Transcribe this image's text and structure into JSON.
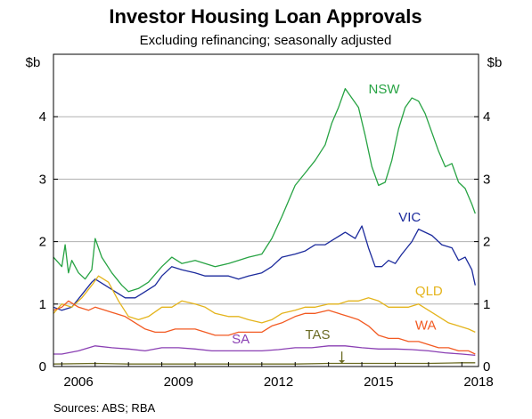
{
  "chart_data": {
    "type": "line",
    "title": "Investor Housing Loan Approvals",
    "subtitle": "Excluding refinancing; seasonally adjusted",
    "ylabel_left": "$b",
    "ylabel_right": "$b",
    "source": "Sources:   ABS; RBA",
    "xlim": [
      2005.75,
      2018.5
    ],
    "ylim": [
      0,
      5
    ],
    "y_ticks": [
      "0",
      "1",
      "2",
      "3",
      "4"
    ],
    "x_ticks": [
      {
        "value": 2006,
        "label": "2006"
      },
      {
        "value": 2009,
        "label": "2009"
      },
      {
        "value": 2012,
        "label": "2012"
      },
      {
        "value": 2015,
        "label": "2015"
      },
      {
        "value": 2018,
        "label": "2018"
      }
    ],
    "grid": true,
    "series": [
      {
        "name": "NSW",
        "color": "#27a343",
        "x": [
          2005.75,
          2006.0,
          2006.1,
          2006.2,
          2006.3,
          2006.5,
          2006.7,
          2006.9,
          2007.0,
          2007.2,
          2007.5,
          2007.8,
          2008.0,
          2008.3,
          2008.6,
          2009.0,
          2009.3,
          2009.6,
          2010.0,
          2010.3,
          2010.6,
          2011.0,
          2011.3,
          2011.6,
          2012.0,
          2012.3,
          2012.6,
          2013.0,
          2013.3,
          2013.6,
          2013.9,
          2014.1,
          2014.3,
          2014.5,
          2014.7,
          2014.9,
          2015.1,
          2015.3,
          2015.5,
          2015.7,
          2015.9,
          2016.1,
          2016.3,
          2016.5,
          2016.7,
          2016.9,
          2017.1,
          2017.3,
          2017.5,
          2017.7,
          2017.9,
          2018.1,
          2018.3,
          2018.4
        ],
        "values": [
          1.75,
          1.6,
          1.95,
          1.5,
          1.7,
          1.5,
          1.4,
          1.55,
          2.05,
          1.75,
          1.5,
          1.3,
          1.2,
          1.25,
          1.35,
          1.6,
          1.75,
          1.65,
          1.7,
          1.65,
          1.6,
          1.65,
          1.7,
          1.75,
          1.8,
          2.05,
          2.4,
          2.9,
          3.1,
          3.3,
          3.55,
          3.9,
          4.15,
          4.45,
          4.3,
          4.15,
          3.7,
          3.2,
          2.9,
          2.95,
          3.3,
          3.8,
          4.15,
          4.3,
          4.25,
          4.05,
          3.75,
          3.45,
          3.2,
          3.25,
          2.95,
          2.85,
          2.6,
          2.45
        ]
      },
      {
        "name": "VIC",
        "color": "#1b2a9c",
        "x": [
          2005.75,
          2006.0,
          2006.3,
          2006.6,
          2006.9,
          2007.0,
          2007.3,
          2007.6,
          2007.9,
          2008.2,
          2008.5,
          2008.8,
          2009.0,
          2009.3,
          2009.6,
          2010.0,
          2010.3,
          2010.6,
          2011.0,
          2011.3,
          2011.6,
          2012.0,
          2012.3,
          2012.6,
          2013.0,
          2013.3,
          2013.6,
          2013.9,
          2014.2,
          2014.5,
          2014.8,
          2015.0,
          2015.2,
          2015.4,
          2015.6,
          2015.8,
          2016.0,
          2016.2,
          2016.5,
          2016.7,
          2016.9,
          2017.1,
          2017.4,
          2017.7,
          2017.9,
          2018.1,
          2018.3,
          2018.4
        ],
        "values": [
          0.95,
          0.9,
          0.95,
          1.15,
          1.35,
          1.4,
          1.3,
          1.2,
          1.1,
          1.1,
          1.2,
          1.3,
          1.45,
          1.6,
          1.55,
          1.5,
          1.45,
          1.45,
          1.45,
          1.4,
          1.45,
          1.5,
          1.6,
          1.75,
          1.8,
          1.85,
          1.95,
          1.95,
          2.05,
          2.15,
          2.05,
          2.25,
          1.9,
          1.6,
          1.6,
          1.7,
          1.65,
          1.8,
          2.0,
          2.2,
          2.15,
          2.1,
          1.95,
          1.9,
          1.7,
          1.75,
          1.55,
          1.3
        ]
      },
      {
        "name": "QLD",
        "color": "#e4b41c",
        "x": [
          2005.75,
          2006.0,
          2006.3,
          2006.6,
          2006.9,
          2007.1,
          2007.4,
          2007.7,
          2008.0,
          2008.3,
          2008.6,
          2009.0,
          2009.3,
          2009.6,
          2010.0,
          2010.3,
          2010.6,
          2011.0,
          2011.3,
          2011.6,
          2012.0,
          2012.3,
          2012.6,
          2013.0,
          2013.3,
          2013.6,
          2014.0,
          2014.3,
          2014.6,
          2014.9,
          2015.2,
          2015.5,
          2015.8,
          2016.1,
          2016.4,
          2016.7,
          2017.0,
          2017.3,
          2017.6,
          2017.9,
          2018.2,
          2018.4
        ],
        "values": [
          0.85,
          1.0,
          0.95,
          1.1,
          1.3,
          1.45,
          1.35,
          1.05,
          0.8,
          0.75,
          0.8,
          0.95,
          0.95,
          1.05,
          1.0,
          0.95,
          0.85,
          0.8,
          0.8,
          0.75,
          0.7,
          0.75,
          0.85,
          0.9,
          0.95,
          0.95,
          1.0,
          1.0,
          1.05,
          1.05,
          1.1,
          1.05,
          0.95,
          0.95,
          0.95,
          1.0,
          0.9,
          0.8,
          0.7,
          0.65,
          0.6,
          0.55
        ]
      },
      {
        "name": "WA",
        "color": "#f25a22",
        "x": [
          2005.75,
          2006.0,
          2006.2,
          2006.5,
          2006.8,
          2007.0,
          2007.3,
          2007.6,
          2007.9,
          2008.2,
          2008.5,
          2008.8,
          2009.1,
          2009.4,
          2009.7,
          2010.0,
          2010.3,
          2010.6,
          2011.0,
          2011.3,
          2011.6,
          2012.0,
          2012.3,
          2012.6,
          2013.0,
          2013.3,
          2013.6,
          2014.0,
          2014.3,
          2014.6,
          2014.9,
          2015.2,
          2015.5,
          2015.8,
          2016.1,
          2016.4,
          2016.7,
          2017.0,
          2017.3,
          2017.6,
          2017.9,
          2018.2,
          2018.4
        ],
        "values": [
          0.9,
          0.95,
          1.05,
          0.95,
          0.9,
          0.95,
          0.9,
          0.85,
          0.8,
          0.7,
          0.6,
          0.55,
          0.55,
          0.6,
          0.6,
          0.6,
          0.55,
          0.5,
          0.5,
          0.55,
          0.55,
          0.55,
          0.65,
          0.7,
          0.8,
          0.85,
          0.85,
          0.9,
          0.85,
          0.8,
          0.75,
          0.65,
          0.5,
          0.45,
          0.45,
          0.4,
          0.4,
          0.35,
          0.3,
          0.3,
          0.25,
          0.25,
          0.2
        ]
      },
      {
        "name": "SA",
        "color": "#8a3fb3",
        "x": [
          2005.75,
          2006.0,
          2006.5,
          2007.0,
          2007.5,
          2008.0,
          2008.5,
          2009.0,
          2009.5,
          2010.0,
          2010.5,
          2011.0,
          2011.5,
          2012.0,
          2012.5,
          2013.0,
          2013.5,
          2014.0,
          2014.5,
          2015.0,
          2015.5,
          2016.0,
          2016.5,
          2017.0,
          2017.5,
          2018.0,
          2018.4
        ],
        "values": [
          0.2,
          0.2,
          0.25,
          0.33,
          0.3,
          0.28,
          0.25,
          0.3,
          0.3,
          0.28,
          0.25,
          0.25,
          0.25,
          0.25,
          0.27,
          0.3,
          0.3,
          0.33,
          0.33,
          0.3,
          0.28,
          0.28,
          0.27,
          0.25,
          0.22,
          0.2,
          0.18
        ]
      },
      {
        "name": "TAS",
        "color": "#6b6b23",
        "x": [
          2005.75,
          2007.0,
          2008.0,
          2009.0,
          2010.0,
          2011.0,
          2012.0,
          2013.0,
          2014.0,
          2015.0,
          2016.0,
          2017.0,
          2018.0,
          2018.4
        ],
        "values": [
          0.04,
          0.05,
          0.04,
          0.04,
          0.04,
          0.04,
          0.04,
          0.04,
          0.05,
          0.05,
          0.05,
          0.05,
          0.06,
          0.06
        ]
      }
    ]
  }
}
